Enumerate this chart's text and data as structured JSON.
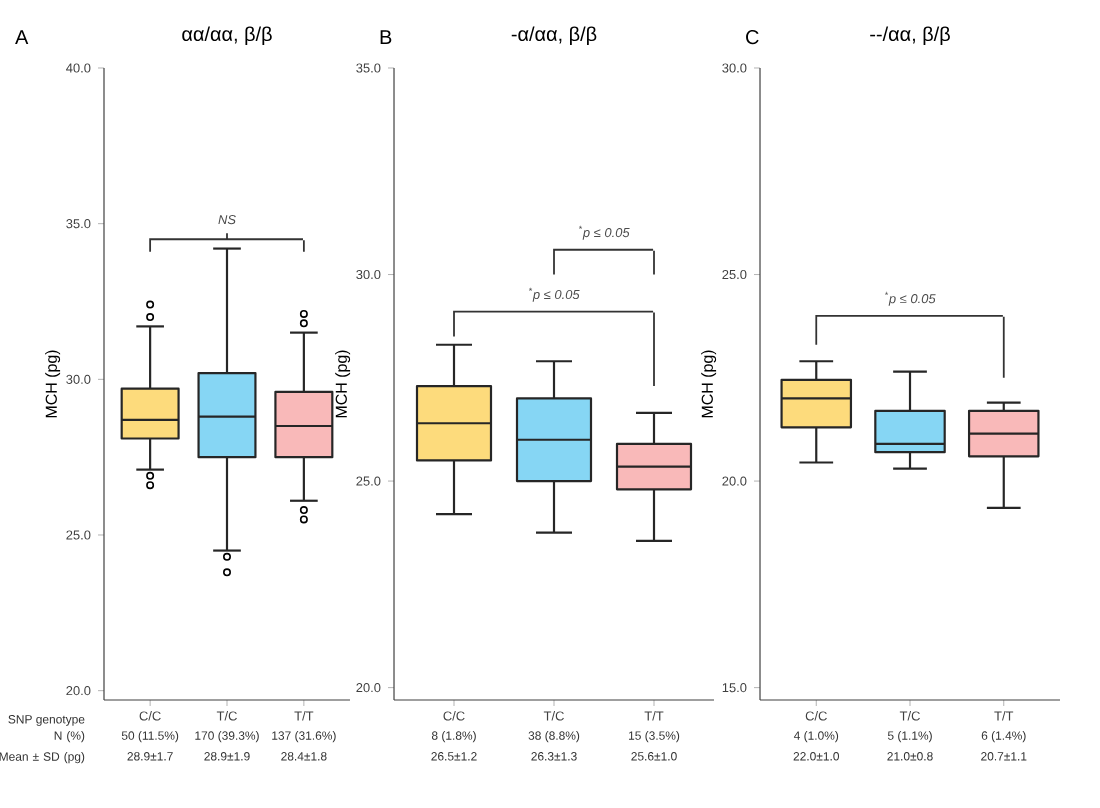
{
  "chart_data": [
    {
      "type": "box",
      "title": "αα/αα, β/β",
      "ylabel": "MCH (pg)",
      "xlabel": "SNP genotype",
      "categories": [
        "C/C",
        "T/C",
        "T/T"
      ],
      "colors": [
        "#fddb7c",
        "#86d6f4",
        "#f9b9b9"
      ],
      "boxes": [
        {
          "low": 27.1,
          "q1": 28.1,
          "median": 28.7,
          "q3": 29.7,
          "high": 31.7,
          "outliers": [
            32.0,
            32.4,
            26.6,
            26.9
          ]
        },
        {
          "low": 24.5,
          "q1": 27.5,
          "median": 28.8,
          "q3": 30.2,
          "high": 34.2,
          "outliers": [
            24.3,
            23.8
          ]
        },
        {
          "low": 26.1,
          "q1": 27.5,
          "median": 28.5,
          "q3": 29.6,
          "high": 31.5,
          "outliers": [
            31.8,
            32.1,
            25.5,
            25.8
          ]
        }
      ],
      "ylim": [
        19.7,
        40
      ],
      "yticks": [
        {
          "value": 20,
          "label": "20.0"
        },
        {
          "value": 25,
          "label": "25.0"
        },
        {
          "value": 30,
          "label": "30.0"
        },
        {
          "value": 35,
          "label": "35.0"
        },
        {
          "value": 40,
          "label": "40.0"
        }
      ],
      "annotations": [
        "A",
        "50 (11.5%)",
        "170 (39.3%)",
        "137 (31.6%)",
        "28.9±1.7",
        "28.9±1.9",
        "28.4±1.8",
        "NS",
        "N (%)",
        "Mean ± SD (pg)"
      ]
    },
    {
      "type": "box",
      "title": "-α/αα, β/β",
      "ylabel": "MCH (pg)",
      "categories": [
        "C/C",
        "T/C",
        "T/T"
      ],
      "colors": [
        "#fddb7c",
        "#86d6f4",
        "#f9b9b9"
      ],
      "boxes": [
        {
          "low": 24.2,
          "q1": 25.5,
          "median": 26.4,
          "q3": 27.3,
          "high": 28.3
        },
        {
          "low": 23.75,
          "q1": 25.0,
          "median": 26.0,
          "q3": 27.0,
          "high": 27.9
        },
        {
          "low": 23.55,
          "q1": 24.8,
          "median": 25.35,
          "q3": 25.9,
          "high": 26.65
        }
      ],
      "ylim": [
        19.7,
        35
      ],
      "yticks": [
        {
          "value": 20,
          "label": "20.0"
        },
        {
          "value": 25,
          "label": "25.0"
        },
        {
          "value": 30,
          "label": "30.0"
        },
        {
          "value": 35,
          "label": "35.0"
        }
      ],
      "annotations": [
        "B",
        "8 (1.8%)",
        "38 (8.8%)",
        "15 (3.5%)",
        "26.5±1.2",
        "26.3±1.3",
        "25.6±1.0",
        "$^{*}$p ≤ 0.05",
        "$^{*}$p ≤ 0.05"
      ]
    },
    {
      "type": "box",
      "title": "--/αα, β/β",
      "ylabel": "MCH (pg)",
      "categories": [
        "C/C",
        "T/C",
        "T/T"
      ],
      "colors": [
        "#fddb7c",
        "#86d6f4",
        "#f9b9b9"
      ],
      "boxes": [
        {
          "low": 20.45,
          "q1": 21.3,
          "median": 22.0,
          "q3": 22.45,
          "high": 22.9
        },
        {
          "low": 20.3,
          "q1": 20.7,
          "median": 20.9,
          "q3": 21.7,
          "high": 22.65
        },
        {
          "low": 19.35,
          "q1": 20.6,
          "median": 21.15,
          "q3": 21.7,
          "high": 21.9
        }
      ],
      "ylim": [
        14.7,
        30
      ],
      "yticks": [
        {
          "value": 15,
          "label": "15.0"
        },
        {
          "value": 20,
          "label": "20.0"
        },
        {
          "value": 25,
          "label": "25.0"
        },
        {
          "value": 30,
          "label": "30.0"
        }
      ],
      "annotations": [
        "C",
        "4 (1.0%)",
        "5 (1.1%)",
        "6 (1.4%)",
        "22.0±1.0",
        "21.0±0.8",
        "20.7±1.1",
        "$^{*}$p ≤ 0.05"
      ]
    }
  ]
}
